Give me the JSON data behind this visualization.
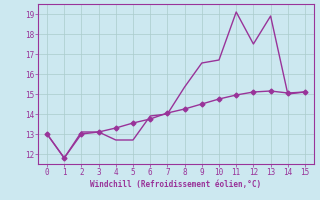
{
  "xlabel": "Windchill (Refroidissement éolien,°C)",
  "line1_x": [
    0,
    1,
    2,
    3,
    4,
    5,
    6,
    7,
    8,
    9,
    10,
    11,
    12,
    13,
    14,
    15
  ],
  "line1_y": [
    13.0,
    11.8,
    13.1,
    13.1,
    12.7,
    12.7,
    13.9,
    14.0,
    15.35,
    16.55,
    16.7,
    19.1,
    17.5,
    18.9,
    15.0,
    15.1
  ],
  "line2_x": [
    0,
    1,
    2,
    3,
    4,
    5,
    6,
    7,
    8,
    9,
    10,
    11,
    12,
    13,
    14,
    15
  ],
  "line2_y": [
    13.0,
    11.8,
    13.0,
    13.1,
    13.3,
    13.55,
    13.75,
    14.05,
    14.25,
    14.5,
    14.75,
    14.95,
    15.1,
    15.15,
    15.05,
    15.1
  ],
  "line_color": "#993399",
  "bg_color": "#cce8f0",
  "grid_color": "#aacccc",
  "xlim": [
    -0.5,
    15.5
  ],
  "ylim": [
    11.5,
    19.5
  ],
  "yticks": [
    12,
    13,
    14,
    15,
    16,
    17,
    18,
    19
  ],
  "xticks": [
    0,
    1,
    2,
    3,
    4,
    5,
    6,
    7,
    8,
    9,
    10,
    11,
    12,
    13,
    14,
    15
  ],
  "marker": "D",
  "markersize": 2.5,
  "linewidth": 1.0
}
